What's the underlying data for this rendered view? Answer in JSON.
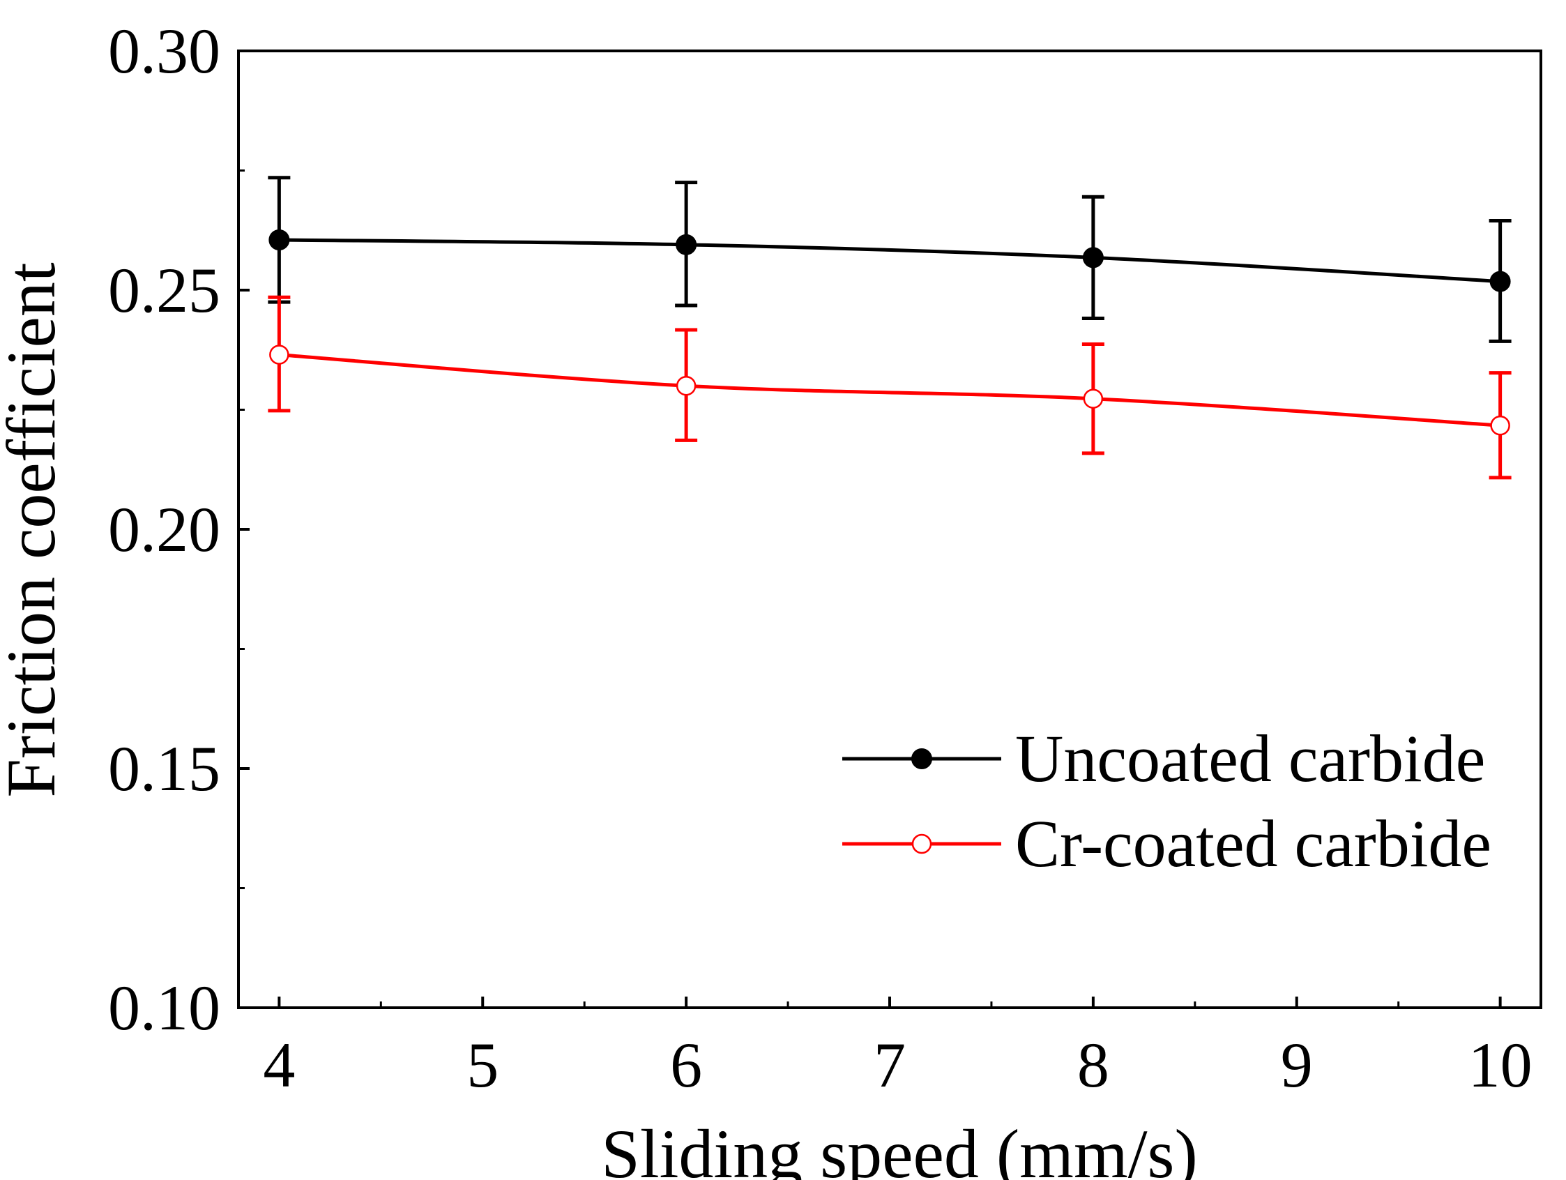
{
  "chart_data": {
    "type": "line",
    "title": "",
    "xlabel": "Sliding speed (mm/s)",
    "ylabel": "Friction coefficient",
    "xlim": [
      3.8,
      10.2
    ],
    "ylim": [
      0.1,
      0.3
    ],
    "x_ticks": [
      4,
      5,
      6,
      7,
      8,
      9,
      10
    ],
    "x_tick_labels": [
      "4",
      "5",
      "6",
      "7",
      "8",
      "9",
      "10"
    ],
    "y_ticks": [
      0.1,
      0.15,
      0.2,
      0.25,
      0.3
    ],
    "y_tick_labels": [
      "0.10",
      "0.15",
      "0.20",
      "0.25",
      "0.30"
    ],
    "grid": false,
    "legend_position": "bottom-right",
    "series": [
      {
        "name": "Uncoated carbide",
        "color": "#000000",
        "marker": "filled-circle",
        "x": [
          4,
          6,
          8,
          10
        ],
        "values": [
          0.2605,
          0.2595,
          0.2568,
          0.2518
        ],
        "error_low": [
          0.2475,
          0.2468,
          0.2441,
          0.2393
        ],
        "error_high": [
          0.2735,
          0.2725,
          0.2695,
          0.2645
        ]
      },
      {
        "name": "Cr-coated carbide",
        "color": "#ff0000",
        "marker": "open-circle",
        "x": [
          4,
          6,
          8,
          10
        ],
        "values": [
          0.2365,
          0.23,
          0.2273,
          0.2217
        ],
        "error_low": [
          0.2248,
          0.2186,
          0.2159,
          0.2108
        ],
        "error_high": [
          0.2485,
          0.2417,
          0.2387,
          0.2327
        ]
      }
    ]
  }
}
